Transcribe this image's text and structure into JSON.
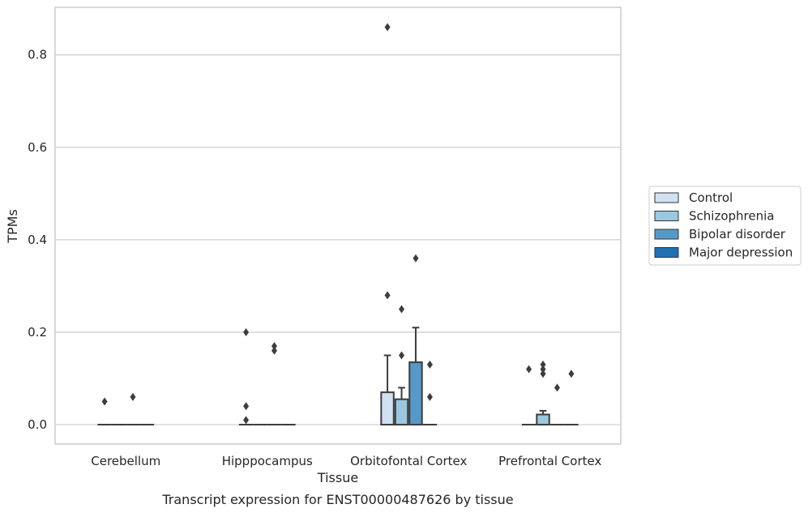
{
  "chart_data": {
    "type": "box",
    "title": "Transcript expression for ENST00000487626 by tissue",
    "xlabel": "Tissue",
    "ylabel": "TPMs",
    "ylim": [
      -0.042,
      0.903
    ],
    "yticks": [
      0.0,
      0.2,
      0.4,
      0.6,
      0.8
    ],
    "ytick_labels": [
      "0.0",
      "0.2",
      "0.4",
      "0.6",
      "0.8"
    ],
    "grid": true,
    "legend_position": "right",
    "categories": [
      "Cerebellum",
      "Hipppocampus",
      "Orbitofontal Cortex",
      "Prefrontal Cortex"
    ],
    "series": [
      {
        "name": "Control",
        "color": "#d0e1f2",
        "boxes": [
          {
            "q1": 0,
            "median": 0,
            "q3": 0,
            "whisker_low": 0,
            "whisker_high": 0,
            "outliers": [
              0.05
            ]
          },
          {
            "q1": 0,
            "median": 0,
            "q3": 0,
            "whisker_low": 0,
            "whisker_high": 0,
            "outliers": [
              0.01,
              0.04,
              0.2
            ]
          },
          {
            "q1": 0,
            "median": 0,
            "q3": 0.07,
            "whisker_low": 0,
            "whisker_high": 0.15,
            "outliers": [
              0.28,
              0.86
            ]
          },
          {
            "q1": 0,
            "median": 0,
            "q3": 0,
            "whisker_low": 0,
            "whisker_high": 0,
            "outliers": [
              0.12
            ]
          }
        ]
      },
      {
        "name": "Schizophrenia",
        "color": "#9ac8e0",
        "boxes": [
          {
            "q1": 0,
            "median": 0,
            "q3": 0,
            "whisker_low": 0,
            "whisker_high": 0,
            "outliers": []
          },
          {
            "q1": 0,
            "median": 0,
            "q3": 0,
            "whisker_low": 0,
            "whisker_high": 0,
            "outliers": []
          },
          {
            "q1": 0,
            "median": 0,
            "q3": 0.055,
            "whisker_low": 0,
            "whisker_high": 0.08,
            "outliers": [
              0.15,
              0.25
            ]
          },
          {
            "q1": 0,
            "median": 0,
            "q3": 0.022,
            "whisker_low": 0,
            "whisker_high": 0.03,
            "outliers": [
              0.11,
              0.12,
              0.13
            ]
          }
        ]
      },
      {
        "name": "Bipolar disorder",
        "color": "#5599c8",
        "boxes": [
          {
            "q1": 0,
            "median": 0,
            "q3": 0,
            "whisker_low": 0,
            "whisker_high": 0,
            "outliers": [
              0.06
            ]
          },
          {
            "q1": 0,
            "median": 0,
            "q3": 0,
            "whisker_low": 0,
            "whisker_high": 0,
            "outliers": [
              0.16,
              0.17
            ]
          },
          {
            "q1": 0,
            "median": 0,
            "q3": 0.135,
            "whisker_low": 0,
            "whisker_high": 0.21,
            "outliers": [
              0.36
            ]
          },
          {
            "q1": 0,
            "median": 0,
            "q3": 0,
            "whisker_low": 0,
            "whisker_high": 0,
            "outliers": [
              0.08
            ]
          }
        ]
      },
      {
        "name": "Major depression",
        "color": "#2070b4",
        "boxes": [
          {
            "q1": 0,
            "median": 0,
            "q3": 0,
            "whisker_low": 0,
            "whisker_high": 0,
            "outliers": []
          },
          {
            "q1": 0,
            "median": 0,
            "q3": 0,
            "whisker_low": 0,
            "whisker_high": 0,
            "outliers": []
          },
          {
            "q1": 0,
            "median": 0,
            "q3": 0,
            "whisker_low": 0,
            "whisker_high": 0,
            "outliers": [
              0.06,
              0.13
            ]
          },
          {
            "q1": 0,
            "median": 0,
            "q3": 0,
            "whisker_low": 0,
            "whisker_high": 0,
            "outliers": [
              0.11
            ]
          }
        ]
      }
    ]
  }
}
